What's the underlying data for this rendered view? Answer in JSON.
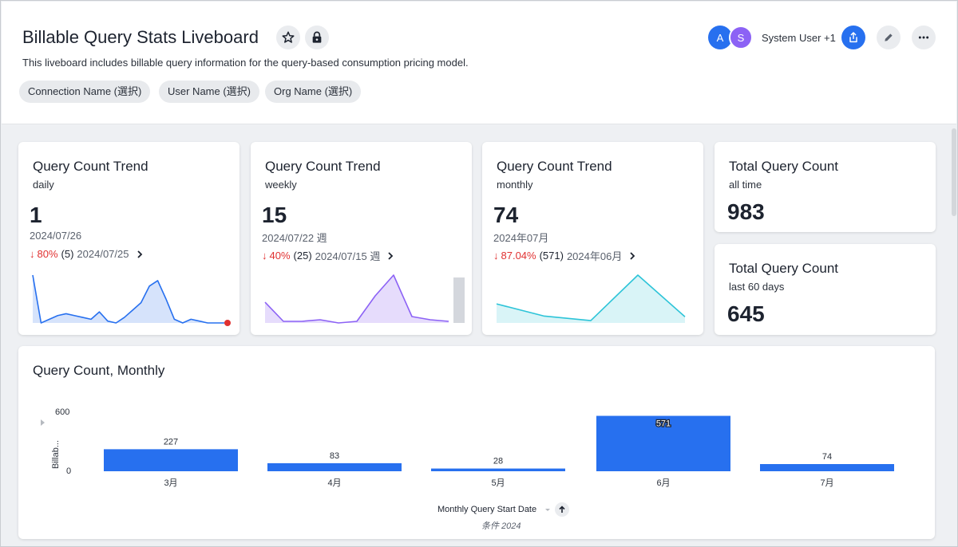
{
  "header": {
    "title": "Billable Query Stats Liveboard",
    "description": "This liveboard includes billable query information for the query-based consumption pricing model.",
    "filters": [
      "Connection Name (選択)",
      "User Name (選択)",
      "Org Name (選択)"
    ],
    "avatars": [
      {
        "letter": "A",
        "color": "#2770ef"
      },
      {
        "letter": "S",
        "color": "#8c62f5"
      }
    ],
    "users_label": "System User +1",
    "icons": [
      "star-icon",
      "lock-icon",
      "share-icon",
      "edit-icon",
      "more-icon"
    ],
    "accent": "#2770ef"
  },
  "kpi_cards": [
    {
      "title": "Query Count Trend",
      "subtitle": "daily",
      "value": "1",
      "date": "2024/07/26",
      "change_pct": "80%",
      "change_count": "(5)",
      "compare_date": "2024/07/25",
      "series_color": "#2770ef",
      "fill_color": "#d6e3fb",
      "final_point_color": "#e03131",
      "spark": [
        52,
        0,
        4,
        8,
        10,
        8,
        6,
        4,
        12,
        2,
        0,
        6,
        14,
        22,
        40,
        46,
        26,
        4,
        0,
        4,
        2,
        0,
        0,
        0
      ]
    },
    {
      "title": "Query Count Trend",
      "subtitle": "weekly",
      "value": "15",
      "date": "2024/07/22 週",
      "change_pct": "40%",
      "change_count": "(25)",
      "compare_date": "2024/07/15 週",
      "series_color": "#8c62f5",
      "fill_color": "#e6dcfc",
      "spark": [
        26,
        2,
        2,
        4,
        0,
        2,
        34,
        60,
        8,
        4,
        2
      ],
      "bar_color": "#d4d7dd"
    },
    {
      "title": "Query Count Trend",
      "subtitle": "monthly",
      "value": "74",
      "date": "2024年07月",
      "change_pct": "87.04%",
      "change_count": "(571)",
      "compare_date": "2024年06月",
      "series_color": "#2dc4d8",
      "fill_color": "#d9f4f7",
      "spark": [
        227,
        83,
        28,
        571,
        74
      ]
    }
  ],
  "total_cards": [
    {
      "title": "Total Query Count",
      "subtitle": "all time",
      "value": "983"
    },
    {
      "title": "Total Query Count",
      "subtitle": "last 60 days",
      "value": "645"
    }
  ],
  "monthly_chart": {
    "title": "Query Count, Monthly",
    "x_axis_label": "Monthly Query Start Date",
    "filter_note": "条件 2024",
    "y_axis_label": "Billab...",
    "y_ticks": [
      "600",
      "0"
    ]
  },
  "chart_data": {
    "type": "bar",
    "title": "Query Count, Monthly",
    "categories": [
      "3月",
      "4月",
      "5月",
      "6月",
      "7月"
    ],
    "values": [
      227,
      83,
      28,
      571,
      74
    ],
    "xlabel": "Monthly Query Start Date",
    "ylabel": "Billab...",
    "ylim": [
      0,
      600
    ],
    "bar_color": "#2770ef",
    "grid": false
  }
}
